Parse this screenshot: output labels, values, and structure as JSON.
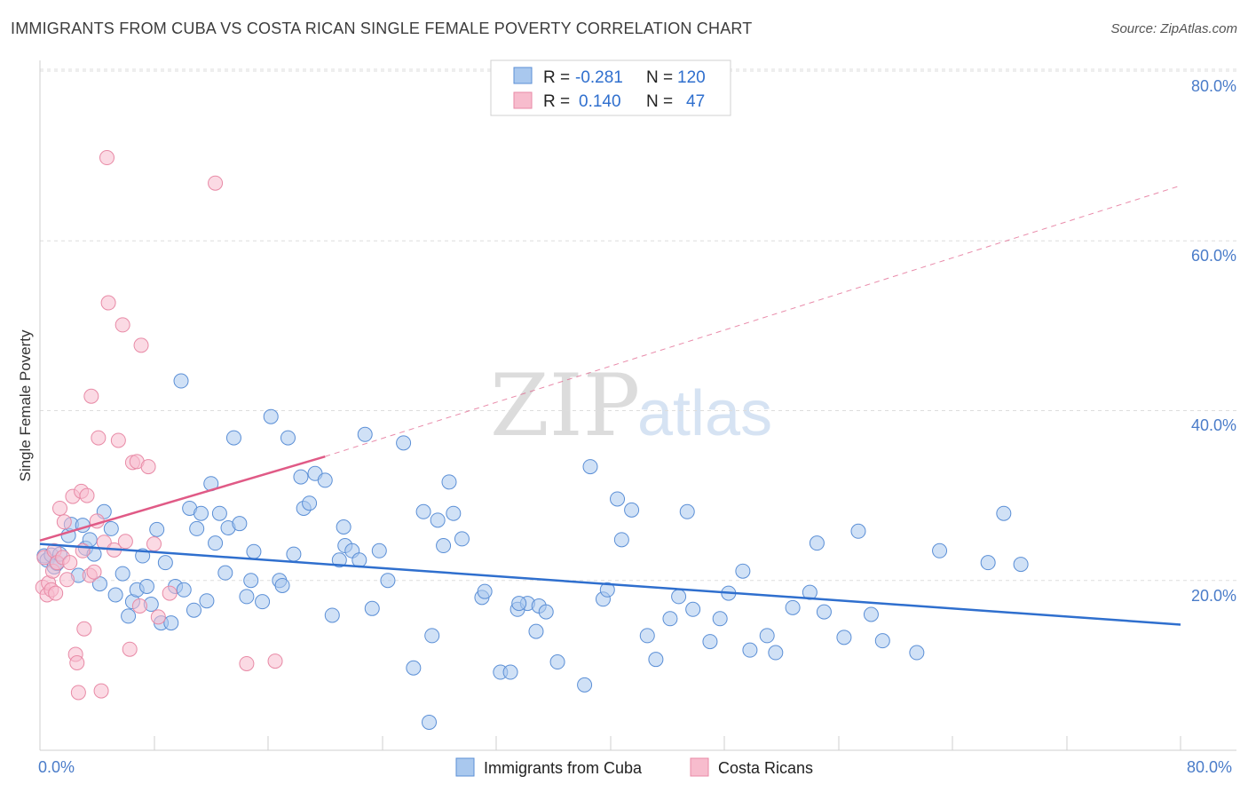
{
  "header": {
    "title": "IMMIGRANTS FROM CUBA VS COSTA RICAN SINGLE FEMALE POVERTY CORRELATION CHART",
    "source": "Source: ZipAtlas.com"
  },
  "watermark": {
    "zip": "ZIP",
    "atlas": "atlas"
  },
  "colors": {
    "blue_fill": "#a9c8ee",
    "blue_stroke": "#5b8fd6",
    "blue_line": "#2f6fce",
    "pink_fill": "#f7bccd",
    "pink_stroke": "#e88aa6",
    "pink_line": "#e05a86",
    "grid": "#dddddd",
    "axis_label": "#4a7cc9"
  },
  "legend": {
    "rows": [
      {
        "r_label": "R =",
        "r_value": "-0.281",
        "n_label": "N =",
        "n_value": "120"
      },
      {
        "r_label": "R =",
        "r_value": "0.140",
        "n_label": "N =",
        "n_value": "47"
      }
    ]
  },
  "chart_data": {
    "type": "scatter",
    "title": "IMMIGRANTS FROM CUBA VS COSTA RICAN SINGLE FEMALE POVERTY CORRELATION CHART",
    "xlabel": "",
    "ylabel": "Single Female Poverty",
    "xlim": [
      0,
      80
    ],
    "ylim": [
      0,
      80
    ],
    "x_tick_labels": [
      "0.0%",
      "80.0%"
    ],
    "y_tick_values": [
      20,
      40,
      60,
      80
    ],
    "y_tick_labels": [
      "20.0%",
      "40.0%",
      "60.0%",
      "80.0%"
    ],
    "series": [
      {
        "name": "Immigrants from Cuba",
        "color": "#a9c8ee",
        "R": -0.281,
        "N": 120,
        "trend": {
          "x0": 0,
          "y0": 24.3,
          "x1": 80,
          "y1": 14.8,
          "style": "solid"
        },
        "points": [
          [
            0.3,
            22.9
          ],
          [
            0.5,
            22.4
          ],
          [
            0.8,
            23.0
          ],
          [
            1.0,
            21.6
          ],
          [
            1.2,
            22.0
          ],
          [
            1.4,
            23.1
          ],
          [
            2.0,
            25.3
          ],
          [
            2.2,
            26.6
          ],
          [
            2.7,
            20.6
          ],
          [
            3.0,
            26.5
          ],
          [
            3.2,
            23.8
          ],
          [
            3.5,
            24.8
          ],
          [
            3.8,
            23.1
          ],
          [
            4.2,
            19.6
          ],
          [
            4.5,
            28.1
          ],
          [
            5.0,
            26.1
          ],
          [
            5.3,
            18.3
          ],
          [
            5.8,
            20.8
          ],
          [
            6.2,
            15.8
          ],
          [
            6.5,
            17.5
          ],
          [
            6.8,
            18.9
          ],
          [
            7.2,
            22.9
          ],
          [
            7.5,
            19.3
          ],
          [
            7.8,
            17.2
          ],
          [
            8.2,
            26.0
          ],
          [
            8.5,
            15.0
          ],
          [
            8.8,
            22.1
          ],
          [
            9.2,
            15.0
          ],
          [
            9.5,
            19.3
          ],
          [
            9.9,
            43.5
          ],
          [
            10.1,
            18.9
          ],
          [
            10.5,
            28.5
          ],
          [
            10.8,
            16.5
          ],
          [
            11.0,
            26.1
          ],
          [
            11.3,
            27.9
          ],
          [
            11.7,
            17.6
          ],
          [
            12.0,
            31.4
          ],
          [
            12.3,
            24.4
          ],
          [
            12.6,
            27.9
          ],
          [
            13.0,
            20.9
          ],
          [
            13.2,
            26.2
          ],
          [
            13.6,
            36.8
          ],
          [
            14.0,
            26.7
          ],
          [
            14.5,
            18.1
          ],
          [
            14.8,
            20.0
          ],
          [
            15.0,
            23.4
          ],
          [
            15.6,
            17.5
          ],
          [
            16.2,
            39.3
          ],
          [
            16.8,
            20.0
          ],
          [
            17.0,
            19.4
          ],
          [
            17.4,
            36.8
          ],
          [
            17.8,
            23.1
          ],
          [
            18.3,
            32.2
          ],
          [
            18.5,
            28.5
          ],
          [
            18.9,
            29.1
          ],
          [
            19.3,
            32.6
          ],
          [
            20.0,
            31.8
          ],
          [
            20.5,
            15.9
          ],
          [
            21.0,
            22.4
          ],
          [
            21.4,
            24.1
          ],
          [
            21.3,
            26.3
          ],
          [
            21.9,
            23.5
          ],
          [
            22.4,
            22.4
          ],
          [
            22.8,
            37.2
          ],
          [
            23.3,
            16.7
          ],
          [
            23.8,
            23.5
          ],
          [
            24.4,
            20.0
          ],
          [
            25.5,
            36.2
          ],
          [
            26.2,
            9.7
          ],
          [
            26.9,
            28.1
          ],
          [
            27.5,
            13.5
          ],
          [
            27.9,
            27.1
          ],
          [
            28.3,
            24.1
          ],
          [
            28.7,
            31.6
          ],
          [
            29.0,
            27.9
          ],
          [
            29.6,
            24.9
          ],
          [
            31.0,
            18.0
          ],
          [
            31.2,
            18.7
          ],
          [
            32.3,
            9.2
          ],
          [
            33.0,
            9.2
          ],
          [
            33.5,
            16.6
          ],
          [
            34.2,
            17.3
          ],
          [
            34.8,
            14.0
          ],
          [
            35.0,
            17.0
          ],
          [
            35.5,
            16.3
          ],
          [
            36.3,
            10.4
          ],
          [
            33.6,
            17.3
          ],
          [
            27.3,
            3.3
          ],
          [
            38.2,
            7.7
          ],
          [
            38.6,
            33.4
          ],
          [
            39.5,
            17.8
          ],
          [
            39.8,
            18.9
          ],
          [
            40.5,
            29.6
          ],
          [
            40.8,
            24.8
          ],
          [
            41.5,
            28.3
          ],
          [
            42.6,
            13.5
          ],
          [
            43.2,
            10.7
          ],
          [
            44.2,
            15.5
          ],
          [
            44.8,
            18.1
          ],
          [
            45.4,
            28.1
          ],
          [
            45.8,
            16.6
          ],
          [
            47.0,
            12.8
          ],
          [
            47.7,
            15.5
          ],
          [
            48.3,
            18.5
          ],
          [
            49.3,
            21.1
          ],
          [
            49.8,
            11.8
          ],
          [
            51.0,
            13.5
          ],
          [
            51.6,
            11.5
          ],
          [
            52.8,
            16.8
          ],
          [
            54.0,
            18.6
          ],
          [
            54.5,
            24.4
          ],
          [
            55.0,
            16.3
          ],
          [
            56.4,
            13.3
          ],
          [
            57.4,
            25.8
          ],
          [
            58.3,
            16.0
          ],
          [
            59.1,
            12.9
          ],
          [
            61.5,
            11.5
          ],
          [
            63.1,
            23.5
          ],
          [
            66.5,
            22.1
          ],
          [
            67.6,
            27.9
          ],
          [
            68.8,
            21.9
          ]
        ]
      },
      {
        "name": "Costa Ricans",
        "color": "#f7bccd",
        "R": 0.14,
        "N": 47,
        "trend": {
          "x0": 0,
          "y0": 24.7,
          "x1": 20,
          "y1": 34.6,
          "x1_ext": 80,
          "y1_ext": 66.5,
          "style": "solid-then-dashed"
        },
        "points": [
          [
            0.2,
            19.2
          ],
          [
            0.3,
            22.7
          ],
          [
            0.5,
            18.3
          ],
          [
            0.6,
            19.7
          ],
          [
            0.8,
            18.9
          ],
          [
            0.9,
            21.1
          ],
          [
            1.0,
            23.5
          ],
          [
            1.1,
            18.5
          ],
          [
            1.2,
            22.1
          ],
          [
            1.4,
            28.5
          ],
          [
            1.6,
            22.7
          ],
          [
            1.7,
            26.9
          ],
          [
            1.9,
            20.1
          ],
          [
            2.1,
            22.1
          ],
          [
            2.3,
            29.9
          ],
          [
            2.5,
            11.3
          ],
          [
            2.6,
            10.3
          ],
          [
            2.7,
            6.8
          ],
          [
            2.9,
            30.5
          ],
          [
            3.0,
            23.5
          ],
          [
            3.1,
            14.3
          ],
          [
            3.3,
            30.0
          ],
          [
            3.5,
            20.6
          ],
          [
            3.6,
            41.7
          ],
          [
            3.8,
            21.0
          ],
          [
            4.0,
            27.0
          ],
          [
            4.1,
            36.8
          ],
          [
            4.3,
            7.0
          ],
          [
            4.5,
            24.5
          ],
          [
            4.7,
            69.8
          ],
          [
            4.8,
            52.7
          ],
          [
            5.5,
            36.5
          ],
          [
            5.8,
            50.1
          ],
          [
            5.2,
            23.6
          ],
          [
            6.0,
            24.6
          ],
          [
            6.3,
            11.9
          ],
          [
            6.5,
            33.9
          ],
          [
            6.8,
            34.0
          ],
          [
            7.0,
            17.0
          ],
          [
            7.1,
            47.7
          ],
          [
            7.6,
            33.4
          ],
          [
            8.0,
            24.3
          ],
          [
            8.3,
            15.7
          ],
          [
            9.1,
            18.5
          ],
          [
            12.3,
            66.8
          ],
          [
            14.5,
            10.2
          ],
          [
            16.5,
            10.5
          ]
        ]
      }
    ]
  }
}
